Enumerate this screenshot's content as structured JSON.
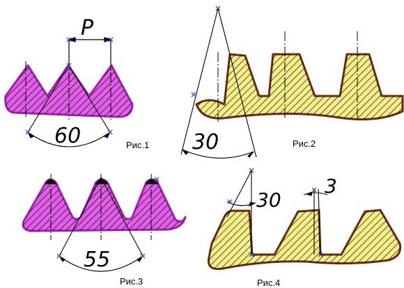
{
  "figures": {
    "fig1": {
      "caption": "Рис.1",
      "angle_label": "60",
      "pitch_label": "P"
    },
    "fig2": {
      "caption": "Рис.2",
      "angle_label": "30"
    },
    "fig3": {
      "caption": "Рис.3",
      "angle_label": "55"
    },
    "fig4": {
      "caption": "Рис.4",
      "angle_label": "30",
      "small_angle_label": "3"
    }
  },
  "colors": {
    "magenta_fill": "#e05ee8",
    "magenta_outline": "#a020b0",
    "yellow_fill": "#f3ee88",
    "yellow_outline": "#6a2a10",
    "marker": "#2a4fd8"
  }
}
